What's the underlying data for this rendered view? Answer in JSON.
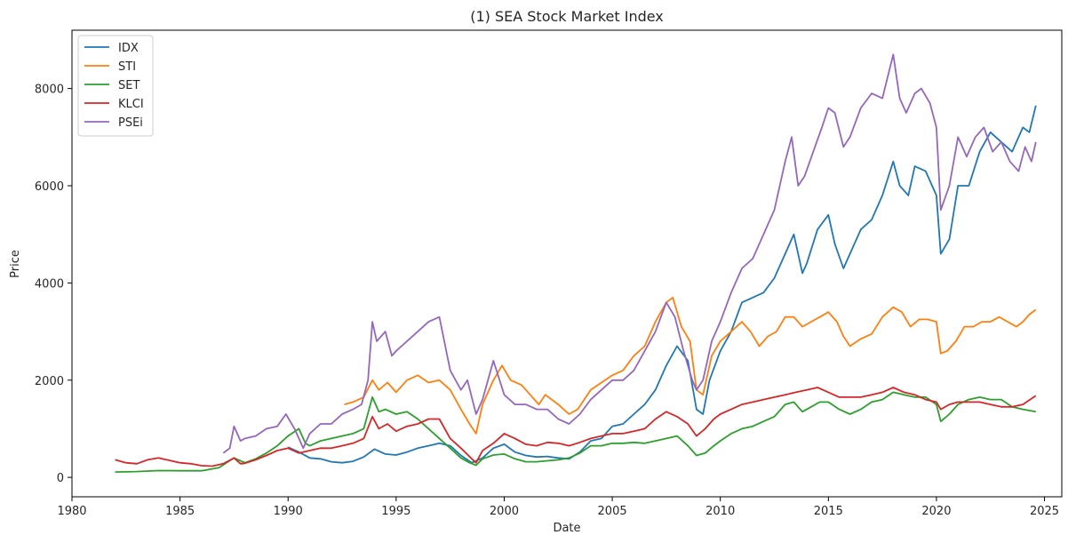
{
  "chart_data": {
    "type": "line",
    "title": "(1) SEA Stock Market Index",
    "xlabel": "Date",
    "ylabel": "Price",
    "xlim": [
      1980,
      2025.8
    ],
    "ylim": [
      -400,
      9200
    ],
    "xticks": [
      1980,
      1985,
      1990,
      1995,
      2000,
      2005,
      2010,
      2015,
      2020,
      2025
    ],
    "yticks": [
      0,
      2000,
      4000,
      6000,
      8000
    ],
    "legend_location": "top-left",
    "series": [
      {
        "name": "IDX",
        "color": "#1f77b4",
        "x": [
          1990.0,
          1990.5,
          1991.0,
          1991.5,
          1992.0,
          1992.5,
          1993.0,
          1993.5,
          1994.0,
          1994.5,
          1995.0,
          1995.5,
          1996.0,
          1996.5,
          1997.0,
          1997.5,
          1998.0,
          1998.5,
          1999.0,
          1999.5,
          2000.0,
          2000.5,
          2001.0,
          2001.5,
          2002.0,
          2002.5,
          2003.0,
          2003.5,
          2004.0,
          2004.5,
          2005.0,
          2005.5,
          2006.0,
          2006.5,
          2007.0,
          2007.5,
          2008.0,
          2008.5,
          2008.9,
          2009.2,
          2009.5,
          2010.0,
          2010.5,
          2011.0,
          2011.5,
          2012.0,
          2012.5,
          2013.0,
          2013.4,
          2013.8,
          2014.0,
          2014.5,
          2015.0,
          2015.3,
          2015.7,
          2016.0,
          2016.5,
          2017.0,
          2017.5,
          2018.0,
          2018.3,
          2018.7,
          2019.0,
          2019.5,
          2020.0,
          2020.2,
          2020.6,
          2021.0,
          2021.5,
          2022.0,
          2022.5,
          2023.0,
          2023.5,
          2024.0,
          2024.3,
          2024.6
        ],
        "y": [
          620,
          520,
          400,
          380,
          320,
          300,
          330,
          420,
          580,
          480,
          460,
          520,
          600,
          650,
          700,
          650,
          450,
          300,
          400,
          600,
          680,
          520,
          450,
          420,
          430,
          400,
          380,
          520,
          750,
          800,
          1050,
          1100,
          1300,
          1500,
          1800,
          2300,
          2700,
          2400,
          1400,
          1300,
          2000,
          2600,
          3000,
          3600,
          3700,
          3800,
          4100,
          4600,
          5000,
          4200,
          4400,
          5100,
          5400,
          4800,
          4300,
          4600,
          5100,
          5300,
          5800,
          6500,
          6000,
          5800,
          6400,
          6300,
          5800,
          4600,
          4900,
          6000,
          6000,
          6700,
          7100,
          6900,
          6700,
          7200,
          7100,
          7650
        ]
      },
      {
        "name": "STI",
        "color": "#ff7f0e",
        "x": [
          1992.6,
          1993.0,
          1993.5,
          1993.9,
          1994.2,
          1994.6,
          1995.0,
          1995.5,
          1996.0,
          1996.5,
          1997.0,
          1997.5,
          1998.0,
          1998.4,
          1998.7,
          1999.0,
          1999.5,
          1999.9,
          2000.3,
          2000.8,
          2001.2,
          2001.6,
          2001.9,
          2002.5,
          2003.0,
          2003.4,
          2004.0,
          2004.5,
          2005.0,
          2005.5,
          2006.0,
          2006.5,
          2007.0,
          2007.5,
          2007.8,
          2008.2,
          2008.6,
          2008.9,
          2009.2,
          2009.6,
          2010.0,
          2010.5,
          2011.0,
          2011.4,
          2011.8,
          2012.2,
          2012.6,
          2013.0,
          2013.4,
          2013.8,
          2014.2,
          2014.6,
          2015.0,
          2015.4,
          2015.7,
          2016.0,
          2016.5,
          2017.0,
          2017.5,
          2018.0,
          2018.4,
          2018.8,
          2019.2,
          2019.6,
          2020.0,
          2020.2,
          2020.5,
          2020.9,
          2021.3,
          2021.7,
          2022.1,
          2022.5,
          2022.9,
          2023.3,
          2023.7,
          2024.0,
          2024.3,
          2024.6
        ],
        "y": [
          1500,
          1550,
          1650,
          2000,
          1800,
          1950,
          1750,
          2000,
          2100,
          1950,
          2000,
          1800,
          1400,
          1100,
          900,
          1500,
          2000,
          2300,
          2000,
          1900,
          1700,
          1500,
          1700,
          1500,
          1300,
          1400,
          1800,
          1950,
          2100,
          2200,
          2500,
          2700,
          3200,
          3600,
          3700,
          3100,
          2800,
          1800,
          1700,
          2500,
          2800,
          3000,
          3200,
          3000,
          2700,
          2900,
          3000,
          3300,
          3300,
          3100,
          3200,
          3300,
          3400,
          3200,
          2900,
          2700,
          2850,
          2950,
          3300,
          3500,
          3400,
          3100,
          3250,
          3250,
          3200,
          2550,
          2600,
          2800,
          3100,
          3100,
          3200,
          3200,
          3300,
          3200,
          3100,
          3200,
          3350,
          3450
        ]
      },
      {
        "name": "SET",
        "color": "#2ca02c",
        "x": [
          1982.0,
          1983.0,
          1984.0,
          1985.0,
          1986.0,
          1986.8,
          1987.5,
          1988.0,
          1988.5,
          1989.0,
          1989.5,
          1990.0,
          1990.5,
          1990.8,
          1991.0,
          1991.5,
          1992.0,
          1992.5,
          1993.0,
          1993.5,
          1993.9,
          1994.2,
          1994.5,
          1995.0,
          1995.5,
          1996.0,
          1996.5,
          1997.0,
          1997.5,
          1998.0,
          1998.4,
          1998.7,
          1999.0,
          1999.5,
          2000.0,
          2000.5,
          2001.0,
          2001.5,
          2002.0,
          2002.5,
          2003.0,
          2003.5,
          2004.0,
          2004.5,
          2005.0,
          2005.5,
          2006.0,
          2006.5,
          2007.0,
          2007.5,
          2008.0,
          2008.5,
          2008.9,
          2009.3,
          2009.7,
          2010.0,
          2010.5,
          2011.0,
          2011.5,
          2012.0,
          2012.5,
          2013.0,
          2013.4,
          2013.8,
          2014.2,
          2014.6,
          2015.0,
          2015.5,
          2016.0,
          2016.5,
          2017.0,
          2017.5,
          2018.0,
          2018.5,
          2019.0,
          2019.5,
          2020.0,
          2020.2,
          2020.6,
          2021.0,
          2021.5,
          2022.0,
          2022.5,
          2023.0,
          2023.5,
          2024.0,
          2024.6
        ],
        "y": [
          110,
          120,
          140,
          135,
          135,
          200,
          400,
          300,
          380,
          500,
          650,
          850,
          1000,
          700,
          650,
          750,
          800,
          850,
          900,
          1000,
          1650,
          1350,
          1400,
          1300,
          1350,
          1200,
          1000,
          800,
          600,
          400,
          300,
          250,
          380,
          460,
          480,
          380,
          320,
          320,
          340,
          360,
          400,
          500,
          650,
          650,
          700,
          700,
          720,
          700,
          750,
          800,
          850,
          650,
          450,
          500,
          650,
          750,
          900,
          1000,
          1050,
          1150,
          1250,
          1500,
          1550,
          1350,
          1450,
          1550,
          1550,
          1400,
          1300,
          1400,
          1550,
          1600,
          1750,
          1700,
          1650,
          1650,
          1500,
          1150,
          1300,
          1500,
          1600,
          1650,
          1600,
          1600,
          1450,
          1400,
          1350
        ]
      },
      {
        "name": "KLCI",
        "color": "#d62728",
        "x": [
          1982.0,
          1982.5,
          1983.0,
          1983.5,
          1984.0,
          1984.5,
          1985.0,
          1985.5,
          1986.0,
          1986.5,
          1987.0,
          1987.5,
          1987.8,
          1988.0,
          1988.5,
          1989.0,
          1989.5,
          1990.0,
          1990.5,
          1991.0,
          1991.5,
          1992.0,
          1992.5,
          1993.0,
          1993.5,
          1993.9,
          1994.2,
          1994.6,
          1995.0,
          1995.5,
          1996.0,
          1996.5,
          1997.0,
          1997.5,
          1998.0,
          1998.5,
          1998.7,
          1999.0,
          1999.5,
          2000.0,
          2000.5,
          2001.0,
          2001.5,
          2002.0,
          2002.5,
          2003.0,
          2003.5,
          2004.0,
          2004.5,
          2005.0,
          2005.5,
          2006.0,
          2006.5,
          2007.0,
          2007.5,
          2008.0,
          2008.5,
          2008.9,
          2009.3,
          2009.7,
          2010.0,
          2010.5,
          2011.0,
          2011.5,
          2012.0,
          2012.5,
          2013.0,
          2013.5,
          2014.0,
          2014.5,
          2015.0,
          2015.5,
          2016.0,
          2016.5,
          2017.0,
          2017.5,
          2018.0,
          2018.5,
          2019.0,
          2019.5,
          2020.0,
          2020.2,
          2020.6,
          2021.0,
          2021.5,
          2022.0,
          2022.5,
          2023.0,
          2023.5,
          2024.0,
          2024.6
        ],
        "y": [
          360,
          300,
          280,
          360,
          400,
          350,
          300,
          280,
          240,
          230,
          280,
          400,
          280,
          290,
          360,
          450,
          550,
          600,
          500,
          550,
          600,
          600,
          650,
          700,
          800,
          1250,
          1000,
          1100,
          950,
          1050,
          1100,
          1200,
          1200,
          800,
          600,
          380,
          300,
          550,
          700,
          900,
          800,
          680,
          650,
          720,
          700,
          650,
          720,
          800,
          850,
          900,
          900,
          950,
          1000,
          1200,
          1350,
          1250,
          1100,
          850,
          1000,
          1200,
          1300,
          1400,
          1500,
          1550,
          1600,
          1650,
          1700,
          1750,
          1800,
          1850,
          1750,
          1650,
          1650,
          1650,
          1700,
          1750,
          1850,
          1750,
          1700,
          1600,
          1550,
          1400,
          1500,
          1550,
          1550,
          1550,
          1500,
          1450,
          1450,
          1500,
          1680
        ]
      },
      {
        "name": "PSEi",
        "color": "#9467bd",
        "x": [
          1987.0,
          1987.3,
          1987.5,
          1987.8,
          1988.0,
          1988.5,
          1989.0,
          1989.5,
          1989.9,
          1990.3,
          1990.7,
          1991.0,
          1991.5,
          1992.0,
          1992.5,
          1993.0,
          1993.4,
          1993.7,
          1993.9,
          1994.1,
          1994.5,
          1994.8,
          1995.0,
          1995.5,
          1996.0,
          1996.5,
          1997.0,
          1997.5,
          1998.0,
          1998.3,
          1998.7,
          1999.0,
          1999.5,
          2000.0,
          2000.5,
          2001.0,
          2001.5,
          2002.0,
          2002.5,
          2003.0,
          2003.5,
          2004.0,
          2004.5,
          2005.0,
          2005.5,
          2006.0,
          2006.5,
          2007.0,
          2007.5,
          2007.9,
          2008.3,
          2008.7,
          2008.9,
          2009.2,
          2009.6,
          2010.0,
          2010.5,
          2011.0,
          2011.5,
          2012.0,
          2012.5,
          2013.0,
          2013.3,
          2013.6,
          2013.9,
          2014.3,
          2014.7,
          2015.0,
          2015.3,
          2015.7,
          2016.0,
          2016.5,
          2017.0,
          2017.5,
          2018.0,
          2018.3,
          2018.6,
          2019.0,
          2019.3,
          2019.7,
          2020.0,
          2020.2,
          2020.6,
          2021.0,
          2021.4,
          2021.8,
          2022.2,
          2022.6,
          2023.0,
          2023.4,
          2023.8,
          2024.1,
          2024.4,
          2024.6
        ],
        "y": [
          500,
          600,
          1050,
          750,
          800,
          850,
          1000,
          1050,
          1300,
          1000,
          600,
          900,
          1100,
          1100,
          1300,
          1400,
          1500,
          2000,
          3200,
          2800,
          3000,
          2500,
          2600,
          2800,
          3000,
          3200,
          3300,
          2200,
          1800,
          2000,
          1300,
          1600,
          2400,
          1700,
          1500,
          1500,
          1400,
          1400,
          1200,
          1100,
          1300,
          1600,
          1800,
          2000,
          2000,
          2200,
          2600,
          3000,
          3600,
          3300,
          2600,
          2000,
          1800,
          2000,
          2800,
          3200,
          3800,
          4300,
          4500,
          5000,
          5500,
          6500,
          7000,
          6000,
          6200,
          6700,
          7200,
          7600,
          7500,
          6800,
          7000,
          7600,
          7900,
          7800,
          8700,
          7800,
          7500,
          7900,
          8000,
          7700,
          7200,
          5500,
          6000,
          7000,
          6600,
          7000,
          7200,
          6700,
          6900,
          6500,
          6300,
          6800,
          6500,
          6900
        ]
      }
    ]
  }
}
